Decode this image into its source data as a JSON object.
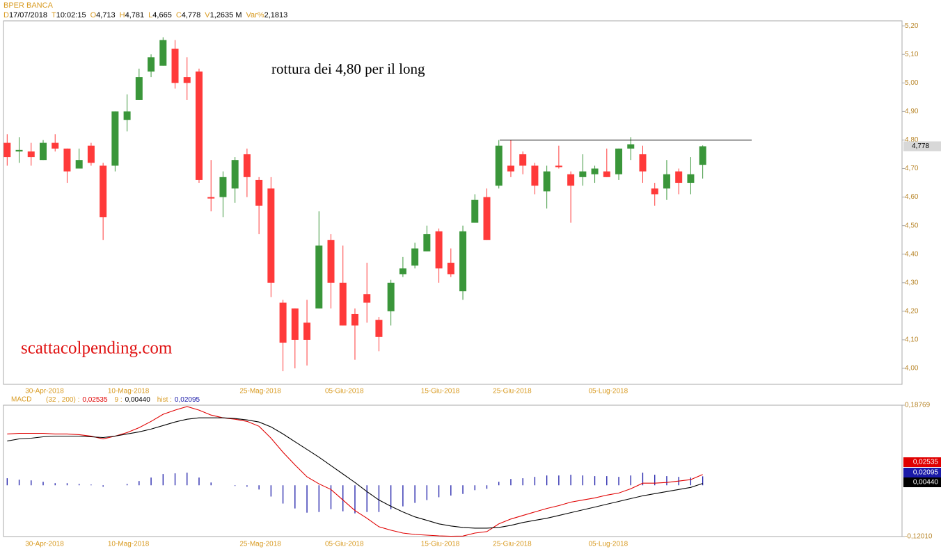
{
  "chart_data": [
    {
      "type": "candlestick",
      "title": "BPER BANCA",
      "info": [
        {
          "key": "D",
          "value": "17/07/2018"
        },
        {
          "key": "T",
          "value": "10:02:15"
        },
        {
          "key": "O",
          "value": "4,713"
        },
        {
          "key": "H",
          "value": "4,781"
        },
        {
          "key": "L",
          "value": "4,665"
        },
        {
          "key": "C",
          "value": "4,778"
        },
        {
          "key": "V",
          "value": "1,2635 M"
        },
        {
          "key": "Var%",
          "value": "2,1813"
        }
      ],
      "categories": [
        null,
        null,
        null,
        "30-Apr-2018",
        null,
        null,
        null,
        null,
        null,
        null,
        "10-Mag-2018",
        null,
        null,
        null,
        null,
        null,
        null,
        null,
        null,
        null,
        null,
        "25-Mag-2018",
        null,
        null,
        null,
        null,
        null,
        null,
        "05-Giu-2018",
        null,
        null,
        null,
        null,
        null,
        null,
        null,
        "15-Giu-2018",
        null,
        null,
        null,
        null,
        null,
        "25-Giu-2018",
        null,
        null,
        null,
        null,
        null,
        null,
        null,
        "05-Lug-2018",
        null,
        null,
        null,
        null,
        null,
        null,
        null,
        null
      ],
      "open": [
        4.79,
        4.76,
        4.76,
        4.73,
        4.79,
        4.77,
        4.7,
        4.78,
        4.71,
        4.71,
        4.87,
        4.94,
        5.04,
        5.06,
        5.12,
        5.02,
        5.04,
        4.6,
        4.6,
        4.63,
        4.75,
        4.66,
        4.63,
        4.23,
        4.21,
        4.16,
        4.21,
        4.45,
        4.3,
        4.19,
        4.26,
        4.17,
        4.2,
        4.33,
        4.36,
        4.41,
        4.48,
        4.37,
        4.27,
        4.51,
        4.6,
        4.64,
        4.71,
        4.75,
        4.71,
        4.62,
        4.71,
        4.68,
        4.67,
        4.68,
        4.69,
        4.68,
        4.77,
        4.75,
        4.63,
        4.63,
        4.69,
        4.65,
        4.713
      ],
      "high": [
        4.82,
        4.81,
        4.79,
        4.8,
        4.82,
        4.77,
        4.77,
        4.79,
        4.72,
        4.9,
        4.96,
        5.05,
        5.1,
        5.16,
        5.15,
        5.09,
        5.05,
        4.73,
        4.69,
        4.74,
        4.77,
        4.67,
        4.67,
        4.24,
        4.21,
        4.24,
        4.55,
        4.47,
        4.43,
        4.21,
        4.37,
        4.18,
        4.31,
        4.39,
        4.44,
        4.5,
        4.49,
        4.42,
        4.5,
        4.61,
        4.63,
        4.8,
        4.8,
        4.76,
        4.72,
        4.71,
        4.78,
        4.69,
        4.75,
        4.71,
        4.77,
        4.77,
        4.81,
        4.78,
        4.65,
        4.73,
        4.7,
        4.74,
        4.781
      ],
      "low": [
        4.71,
        4.72,
        4.71,
        4.73,
        4.76,
        4.65,
        4.7,
        4.71,
        4.45,
        4.69,
        4.83,
        4.94,
        5.02,
        5.06,
        4.98,
        4.94,
        4.65,
        4.55,
        4.53,
        4.58,
        4.6,
        4.47,
        4.25,
        3.99,
        4.0,
        4.01,
        4.21,
        4.21,
        4.15,
        4.03,
        4.16,
        4.06,
        4.15,
        4.32,
        4.35,
        4.41,
        4.3,
        4.32,
        4.24,
        4.51,
        4.45,
        4.63,
        4.67,
        4.68,
        4.61,
        4.56,
        4.7,
        4.51,
        4.64,
        4.65,
        4.67,
        4.66,
        4.73,
        4.65,
        4.57,
        4.59,
        4.61,
        4.61,
        4.665
      ],
      "close": [
        4.74,
        4.765,
        4.74,
        4.79,
        4.77,
        4.69,
        4.73,
        4.72,
        4.53,
        4.9,
        4.9,
        5.02,
        5.09,
        5.15,
        5.0,
        5.0,
        4.66,
        4.595,
        4.67,
        4.73,
        4.67,
        4.57,
        4.3,
        4.09,
        4.1,
        4.1,
        4.43,
        4.3,
        4.15,
        4.15,
        4.23,
        4.11,
        4.3,
        4.35,
        4.42,
        4.47,
        4.35,
        4.33,
        4.48,
        4.59,
        4.45,
        4.78,
        4.69,
        4.71,
        4.64,
        4.69,
        4.705,
        4.64,
        4.69,
        4.7,
        4.67,
        4.77,
        4.785,
        4.69,
        4.61,
        4.68,
        4.65,
        4.68,
        4.778
      ],
      "up_color": "#3a963a",
      "down_color": "#ff3a3a",
      "last_label": "4,778",
      "hline": {
        "value": 4.8
      },
      "annotations": [
        {
          "text": "rottura dei 4,80 per il long",
          "color": "#000000"
        },
        {
          "text": "scattacolpending.com",
          "color": "#e01010"
        }
      ],
      "ylim": [
        3.944,
        5.215
      ],
      "yticks": [
        {
          "value": 5.2,
          "label": "5,20"
        },
        {
          "value": 5.1,
          "label": "5,10"
        },
        {
          "value": 5.0,
          "label": "5,00"
        },
        {
          "value": 4.9,
          "label": "4,90"
        },
        {
          "value": 4.8,
          "label": "4,80"
        },
        {
          "value": 4.7,
          "label": "4,70"
        },
        {
          "value": 4.6,
          "label": "4,60"
        },
        {
          "value": 4.5,
          "label": "4,50"
        },
        {
          "value": 4.4,
          "label": "4,40"
        },
        {
          "value": 4.3,
          "label": "4,30"
        },
        {
          "value": 4.2,
          "label": "4,20"
        },
        {
          "value": 4.1,
          "label": "4,10"
        },
        {
          "value": 4.0,
          "label": "4,00"
        }
      ]
    },
    {
      "type": "macd",
      "title": "MACD",
      "series": [
        {
          "name": "(32 , 200) :",
          "color": "#e00000",
          "last_label": "0,02535",
          "values": [
            0.1202,
            0.1218,
            0.1218,
            0.1218,
            0.1202,
            0.1202,
            0.1186,
            0.1153,
            0.1087,
            0.1153,
            0.1235,
            0.135,
            0.1498,
            0.1663,
            0.1762,
            0.1844,
            0.1762,
            0.1646,
            0.1581,
            0.1548,
            0.1498,
            0.1383,
            0.1103,
            0.0774,
            0.0478,
            0.0198,
            0.0033,
            -0.0098,
            -0.0345,
            -0.0592,
            -0.0773,
            -0.0971,
            -0.1053,
            -0.1119,
            -0.1152,
            -0.1168,
            -0.1185,
            -0.1195,
            -0.119,
            -0.1119,
            -0.1086,
            -0.0905,
            -0.079,
            -0.0707,
            -0.0625,
            -0.0543,
            -0.0477,
            -0.0395,
            -0.0345,
            -0.0296,
            -0.023,
            -0.0181,
            -0.0082,
            0.005,
            0.005,
            0.0066,
            0.0099,
            0.0132,
            0.02535
          ]
        },
        {
          "name": "9 :",
          "color": "#000000",
          "last_label": "0,00440",
          "values": [
            0.1037,
            0.1087,
            0.1103,
            0.1136,
            0.1153,
            0.1153,
            0.1153,
            0.1136,
            0.112,
            0.1153,
            0.1202,
            0.1251,
            0.1317,
            0.14,
            0.1482,
            0.1548,
            0.1581,
            0.1581,
            0.1581,
            0.1564,
            0.1531,
            0.1482,
            0.1367,
            0.1202,
            0.1021,
            0.084,
            0.0659,
            0.0461,
            0.0264,
            0.0066,
            -0.0148,
            -0.0345,
            -0.0493,
            -0.0625,
            -0.074,
            -0.0822,
            -0.0905,
            -0.0954,
            -0.0987,
            -0.1004,
            -0.1004,
            -0.0987,
            -0.0938,
            -0.0872,
            -0.0822,
            -0.0773,
            -0.0707,
            -0.0641,
            -0.0576,
            -0.051,
            -0.0444,
            -0.0378,
            -0.0312,
            -0.0246,
            -0.0197,
            -0.0148,
            -0.0098,
            -0.0049,
            0.0044
          ]
        },
        {
          "name": "hist :",
          "color": "#1a1aa8",
          "last_label": "0,02095",
          "kind": "bar",
          "values": [
            0.0165,
            0.0131,
            0.0115,
            0.0082,
            0.0049,
            0.0049,
            0.0033,
            0.0017,
            -0.0033,
            0,
            0.0033,
            0.0099,
            0.0181,
            0.0263,
            0.028,
            0.0296,
            0.0181,
            0.0065,
            0,
            -0.0016,
            -0.0033,
            -0.0099,
            -0.0264,
            -0.0428,
            -0.0543,
            -0.0642,
            -0.0626,
            -0.0559,
            -0.0609,
            -0.0658,
            -0.0625,
            -0.0626,
            -0.056,
            -0.0494,
            -0.0412,
            -0.0346,
            -0.028,
            -0.0241,
            -0.0203,
            -0.0115,
            -0.0082,
            0.0082,
            0.0148,
            0.0165,
            0.0197,
            0.023,
            0.023,
            0.0246,
            0.0231,
            0.0214,
            0.0214,
            0.0197,
            0.023,
            0.0296,
            0.0247,
            0.0214,
            0.0197,
            0.0181,
            0.02095
          ]
        }
      ],
      "ylim": [
        -0.1201,
        0.18769
      ],
      "yticks": [
        {
          "value": 0.18769,
          "label": "0,18769"
        },
        {
          "value": -0.1201,
          "label": "-0,12010"
        }
      ]
    }
  ]
}
